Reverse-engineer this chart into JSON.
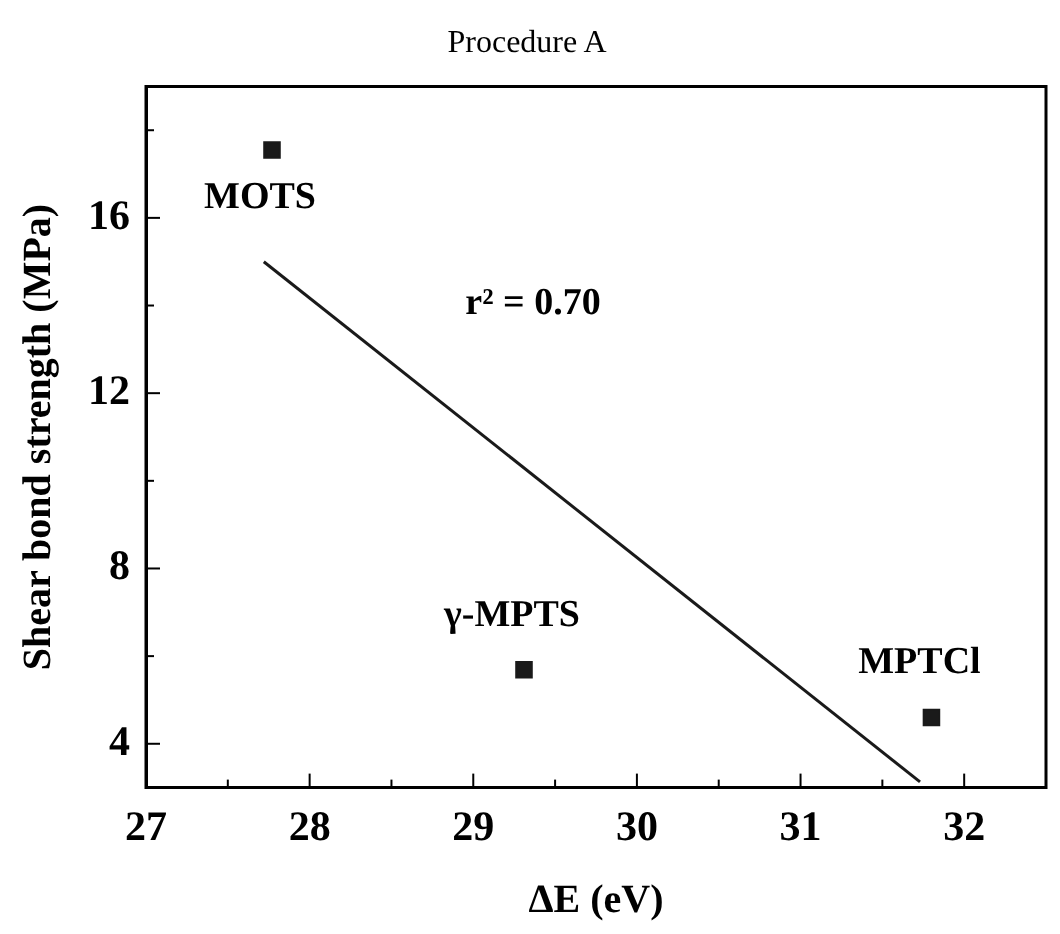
{
  "chart_data": {
    "type": "scatter",
    "title": "Procedure A",
    "xlabel": "ΔE (eV)",
    "ylabel": "Shear bond strength (MPa)",
    "series": [
      {
        "color": "#1a1a1a",
        "marker": "square",
        "x": [
          27.77,
          29.31,
          31.8
        ],
        "values": [
          17.55,
          5.69,
          4.6
        ]
      },
      {
        "type": "line",
        "color": "#1a1a1a",
        "marker": "none",
        "line_style": "solid",
        "x": [
          27.72,
          31.73
        ],
        "values": [
          15.0,
          3.13
        ]
      }
    ],
    "grid": false,
    "legend": false,
    "xlim": [
      27,
      32.5
    ],
    "xticks": [
      27,
      {
        "value": 27.5,
        "label": null
      },
      28,
      {
        "value": 28.5,
        "label": null
      },
      29,
      {
        "value": 29.5,
        "label": null
      },
      30,
      {
        "value": 30.5,
        "label": null
      },
      31,
      {
        "value": 31.5,
        "label": null
      },
      32
    ],
    "ylim": [
      3,
      19
    ],
    "yticks": [
      4,
      {
        "value": 6,
        "label": null
      },
      8,
      {
        "value": 10,
        "label": null
      },
      12,
      {
        "value": 14,
        "label": null
      },
      16,
      {
        "value": 18,
        "label": null
      }
    ],
    "annotations": [
      {
        "text": "MOTS",
        "x": 27.77,
        "y": 17.55
      },
      {
        "text": "γ-MPTS",
        "x": 29.31,
        "y": 5.69
      },
      {
        "text": "MPTCl",
        "x": 31.8,
        "y": 4.6
      },
      "r² = 0.70"
    ]
  }
}
